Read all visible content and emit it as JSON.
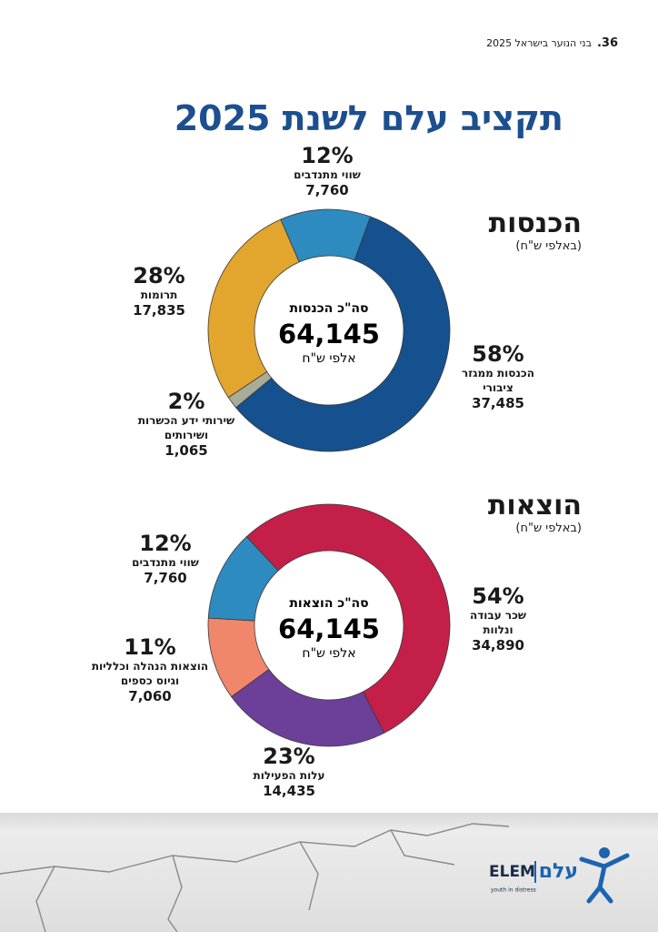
{
  "header": {
    "page_number": "36.",
    "running_title": "בני הנוער בישראל 2025"
  },
  "title": "תקציב עלם לשנת 2025",
  "chart_data": [
    {
      "type": "pie",
      "title": "הכנסות",
      "subtitle": "(באלפי ש\"ח)",
      "center_title": "סה\"כ הכנסות",
      "center_value": "64,145",
      "center_unit": "אלפי ש\"ח",
      "categories": [
        "הכנסות ממגזר ציבורי",
        "שירותי ידע הכשרות ושירותים",
        "תרומות",
        "שווי מתנדבים"
      ],
      "values": [
        37485,
        1065,
        17835,
        7760
      ],
      "value_labels": [
        "37,485",
        "1,065",
        "17,835",
        "7,760"
      ],
      "shares": [
        58,
        2,
        28,
        12
      ],
      "share_labels": [
        "58%",
        "2%",
        "28%",
        "12%"
      ],
      "colors": [
        "#15508f",
        "#a9ad97",
        "#e2a52d",
        "#2e8bbf"
      ]
    },
    {
      "type": "pie",
      "title": "הוצאות",
      "subtitle": "(באלפי ש\"ח)",
      "center_title": "סה\"כ הוצאות",
      "center_value": "64,145",
      "center_unit": "אלפי ש\"ח",
      "categories": [
        "שכר עבודה ונלוות",
        "עלות הפעילות",
        "הוצאות הנהלה וכלליות וגיוס כספים",
        "שווי מתנדבים"
      ],
      "values": [
        34890,
        14435,
        7060,
        7760
      ],
      "value_labels": [
        "34,890",
        "14,435",
        "7,060",
        "7,760"
      ],
      "shares": [
        54,
        23,
        11,
        12
      ],
      "share_labels": [
        "54%",
        "23%",
        "11%",
        "12%"
      ],
      "colors": [
        "#c41f48",
        "#6c3f99",
        "#f0876a",
        "#2e8bbf"
      ]
    }
  ],
  "footer": {
    "logo_en": "ELEM",
    "logo_he": "עלם",
    "tagline": "youth in distress"
  }
}
